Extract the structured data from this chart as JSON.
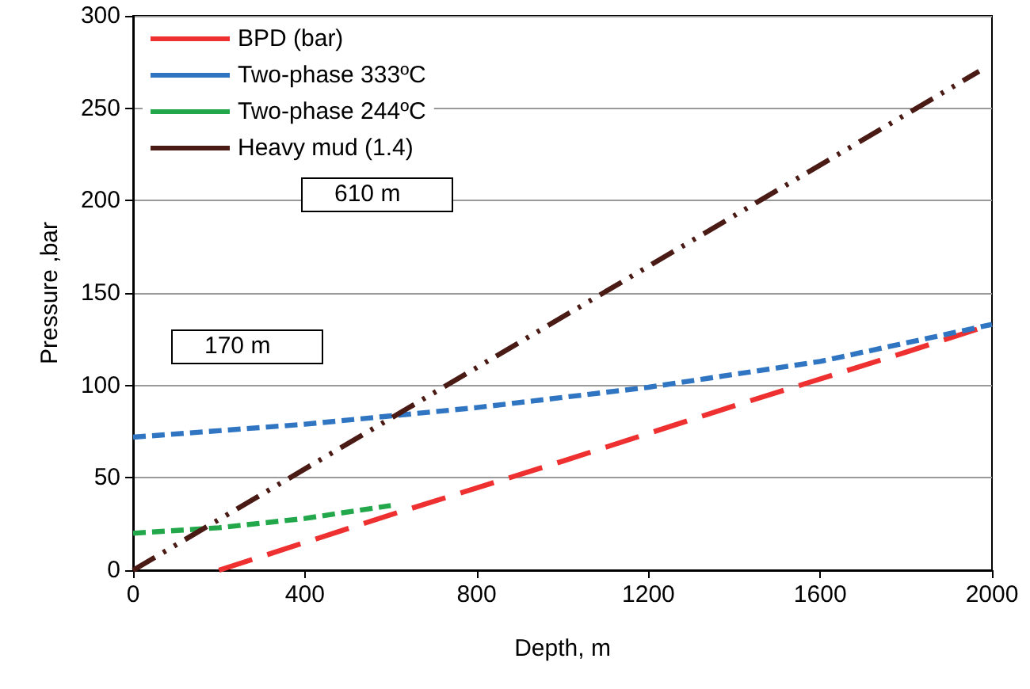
{
  "chart_data": {
    "type": "line",
    "xlabel": "Depth, m",
    "ylabel": "Pressure ,bar",
    "series": [
      {
        "name": "BPD (bar)",
        "color": "#ee3030",
        "x": [
          200,
          600,
          1000,
          1400,
          1800,
          2000
        ],
        "values": [
          0,
          30,
          59,
          89,
          118,
          133
        ],
        "line_style": "dashed"
      },
      {
        "name": "Two-phase 333ºC",
        "color": "#2f75c2",
        "x": [
          0,
          400,
          800,
          1200,
          1600,
          2000
        ],
        "values": [
          72,
          79,
          88,
          99,
          113,
          133
        ],
        "line_style": "dashed"
      },
      {
        "name": "Two-phase 244ºC",
        "color": "#22a84a",
        "x": [
          0,
          200,
          400,
          600
        ],
        "values": [
          20,
          23,
          28,
          35
        ],
        "line_style": "dashed"
      },
      {
        "name": "Heavy mud (1.4)",
        "color": "#4a1a14",
        "x": [
          0,
          1970
        ],
        "values": [
          0,
          270
        ],
        "line_style": "dashed"
      }
    ],
    "annotations": [
      "610 m",
      "170 m"
    ],
    "xlim": [
      0,
      2000
    ],
    "xticks": [
      0,
      400,
      800,
      1200,
      1600,
      2000
    ],
    "ylim": [
      0,
      300
    ],
    "yticks": [
      0,
      50,
      100,
      150,
      200,
      250,
      300
    ],
    "grid": "y",
    "legend": "top left",
    "marker": "none"
  }
}
